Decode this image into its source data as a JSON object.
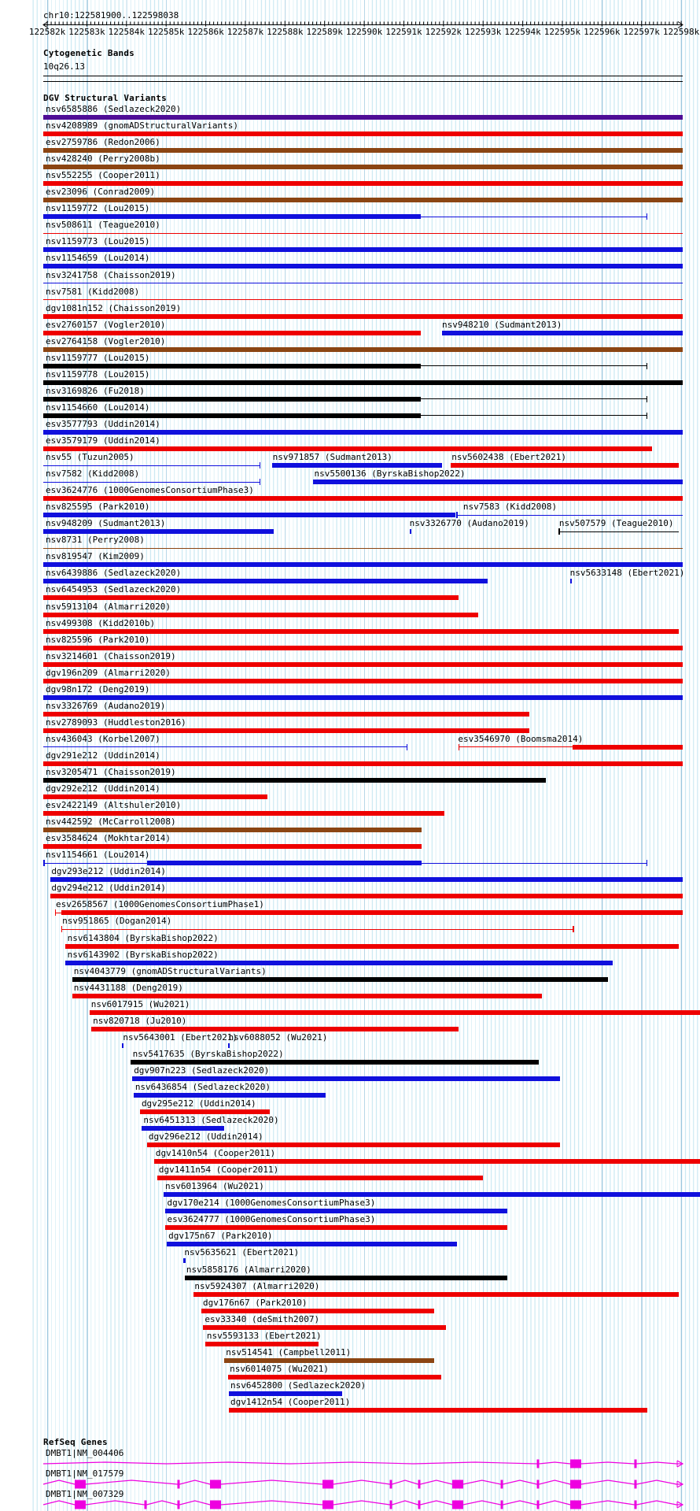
{
  "region": {
    "title": "chr10:122581900..122598038"
  },
  "ruler": {
    "tick_labels": [
      "122582k",
      "122583k",
      "122584k",
      "122585k",
      "122586k",
      "122587k",
      "122588k",
      "122589k",
      "122590k",
      "122591k",
      "122592k",
      "122593k",
      "122594k",
      "122595k",
      "122596k",
      "122597k",
      "122598k"
    ]
  },
  "sections": {
    "cytogenetic": {
      "header": "Cytogenetic Bands",
      "band_label": "10q26.13"
    },
    "dgv": {
      "header": "DGV Structural Variants"
    },
    "refseq": {
      "header": "RefSeq Genes"
    }
  },
  "palette": {
    "red": "#ee0000",
    "blue": "#1010dd",
    "black": "#000000",
    "brown": "#8b4513",
    "purple": "#4e0d96",
    "magenta": "#ee00e0",
    "grid_minor": "#cdeaf3",
    "grid_major": "#9cc6de",
    "text": "#000000"
  },
  "variants": [
    [
      [
        "nsv6585886 (Sedlazeck2020)",
        null,
        [
          [
            "b",
            0,
            100,
            "p"
          ]
        ]
      ]
    ],
    [
      [
        "nsv4208989 (gnomADStructuralVariants)",
        null,
        [
          [
            "b",
            0,
            100,
            "r"
          ]
        ]
      ]
    ],
    [
      [
        "esv2759786 (Redon2006)",
        null,
        [
          [
            "b",
            0,
            100,
            "n"
          ]
        ]
      ]
    ],
    [
      [
        "nsv428240 (Perry2008b)",
        null,
        [
          [
            "b",
            0,
            100,
            "n"
          ]
        ]
      ]
    ],
    [
      [
        "nsv552255 (Cooper2011)",
        null,
        [
          [
            "b",
            0,
            100,
            "r"
          ]
        ]
      ]
    ],
    [
      [
        "esv23096 (Conrad2009)",
        null,
        [
          [
            "b",
            0,
            100,
            "n"
          ]
        ]
      ]
    ],
    [
      [
        "nsv1159772 (Lou2015)",
        null,
        [
          [
            "b",
            0,
            59,
            "b"
          ],
          [
            "l",
            59,
            94.5,
            "b",
            "r"
          ]
        ]
      ]
    ],
    [
      [
        "nsv508611 (Teague2010)",
        null,
        [
          [
            "l",
            0,
            100,
            "r",
            ""
          ]
        ]
      ]
    ],
    [
      [
        "nsv1159773 (Lou2015)",
        null,
        [
          [
            "b",
            0,
            100,
            "b"
          ]
        ]
      ]
    ],
    [
      [
        "nsv1154659 (Lou2014)",
        null,
        [
          [
            "b",
            0,
            100,
            "b"
          ]
        ]
      ]
    ],
    [
      [
        "nsv3241758 (Chaisson2019)",
        null,
        [
          [
            "l",
            0,
            100,
            "b",
            ""
          ]
        ]
      ]
    ],
    [
      [
        "nsv7581 (Kidd2008)",
        null,
        [
          [
            "l",
            0,
            100,
            "r",
            ""
          ]
        ]
      ]
    ],
    [
      [
        "dgv1081n152 (Chaisson2019)",
        null,
        [
          [
            "b",
            0,
            100,
            "r"
          ]
        ]
      ]
    ],
    [
      [
        "esv2760157 (Vogler2010)",
        null,
        [
          [
            "b",
            0,
            59,
            "r"
          ]
        ]
      ],
      [
        "nsv948210 (Sudmant2013)",
        62,
        [
          [
            "b",
            62.4,
            100,
            "b"
          ]
        ]
      ]
    ],
    [
      [
        "esv2764158 (Vogler2010)",
        null,
        [
          [
            "b",
            0,
            100,
            "n"
          ]
        ]
      ]
    ],
    [
      [
        "nsv1159777 (Lou2015)",
        null,
        [
          [
            "b",
            0,
            59,
            "k"
          ],
          [
            "l",
            59,
            94.5,
            "k",
            "r"
          ]
        ]
      ]
    ],
    [
      [
        "nsv1159778 (Lou2015)",
        null,
        [
          [
            "b",
            0,
            100,
            "k"
          ]
        ]
      ]
    ],
    [
      [
        "nsv3169826 (Fu2018)",
        null,
        [
          [
            "b",
            0,
            59,
            "k"
          ],
          [
            "l",
            59,
            94.5,
            "k",
            "r"
          ]
        ]
      ]
    ],
    [
      [
        "nsv1154660 (Lou2014)",
        null,
        [
          [
            "b",
            0,
            59,
            "k"
          ],
          [
            "l",
            59,
            94.5,
            "k",
            "r"
          ]
        ]
      ]
    ],
    [
      [
        "esv3577793 (Uddin2014)",
        null,
        [
          [
            "b",
            0,
            100,
            "b"
          ]
        ]
      ]
    ],
    [
      [
        "esv3579179 (Uddin2014)",
        null,
        [
          [
            "b",
            0,
            95.2,
            "r"
          ]
        ]
      ]
    ],
    [
      [
        "nsv55 (Tuzun2005)",
        null,
        [
          [
            "l",
            0,
            34,
            "b",
            "r"
          ]
        ]
      ],
      [
        "nsv971857 (Sudmant2013)",
        35.5,
        [
          [
            "b",
            35.8,
            62.4,
            "b"
          ]
        ]
      ],
      [
        "nsv5602438 (Ebert2021)",
        63.5,
        [
          [
            "b",
            63.7,
            99.4,
            "r"
          ]
        ]
      ]
    ],
    [
      [
        "nsv7582 (Kidd2008)",
        null,
        [
          [
            "l",
            0,
            34,
            "b",
            "r"
          ]
        ]
      ],
      [
        "nsv5500136 (ByrskaBishop2022)",
        42,
        [
          [
            "b",
            42.2,
            100,
            "b"
          ]
        ]
      ]
    ],
    [
      [
        "esv3624776 (1000GenomesConsortiumPhase3)",
        null,
        [
          [
            "b",
            0,
            100,
            "r"
          ]
        ]
      ]
    ],
    [
      [
        "nsv825595 (Park2010)",
        null,
        [
          [
            "b",
            0,
            64.4,
            "b"
          ]
        ]
      ],
      [
        "nsv7583 (Kidd2008)",
        65.3,
        [
          [
            "l",
            64.6,
            100,
            "b",
            "l"
          ]
        ]
      ]
    ],
    [
      [
        "nsv948209 (Sudmant2013)",
        null,
        [
          [
            "b",
            0,
            36,
            "b"
          ]
        ]
      ],
      [
        "nsv3326770 (Audano2019)",
        56.9,
        [
          [
            "t",
            57.3,
            "b"
          ]
        ]
      ],
      [
        "nsv507579 (Teague2010)",
        80.3,
        [
          [
            "l",
            80.6,
            99.4,
            "k",
            "l"
          ]
        ]
      ]
    ],
    [
      [
        "nsv8731 (Perry2008)",
        null,
        [
          [
            "l",
            0,
            100,
            "n",
            ""
          ]
        ]
      ]
    ],
    [
      [
        "nsv819547 (Kim2009)",
        null,
        [
          [
            "b",
            0,
            100,
            "b"
          ]
        ]
      ]
    ],
    [
      [
        "nsv6439886 (Sedlazeck2020)",
        null,
        [
          [
            "b",
            0,
            69.5,
            "b"
          ]
        ]
      ],
      [
        "nsv5633148 (Ebert2021)",
        82,
        [
          [
            "t",
            82.4,
            "b"
          ]
        ]
      ]
    ],
    [
      [
        "nsv6454953 (Sedlazeck2020)",
        null,
        [
          [
            "b",
            0,
            65,
            "r"
          ]
        ]
      ]
    ],
    [
      [
        "nsv5913104 (Almarri2020)",
        null,
        [
          [
            "b",
            0,
            68,
            "r"
          ]
        ]
      ]
    ],
    [
      [
        "nsv499308 (Kidd2010b)",
        null,
        [
          [
            "b",
            0,
            99.4,
            "r"
          ]
        ]
      ]
    ],
    [
      [
        "nsv825596 (Park2010)",
        null,
        [
          [
            "b",
            0,
            100,
            "r"
          ]
        ]
      ]
    ],
    [
      [
        "nsv3214601 (Chaisson2019)",
        null,
        [
          [
            "b",
            0,
            100,
            "r"
          ]
        ]
      ]
    ],
    [
      [
        "dgv196n209 (Almarri2020)",
        null,
        [
          [
            "b",
            0,
            100,
            "r"
          ]
        ]
      ]
    ],
    [
      [
        "dgv98n172 (Deng2019)",
        null,
        [
          [
            "b",
            0,
            100,
            "b"
          ]
        ]
      ]
    ],
    [
      [
        "nsv3326769 (Audano2019)",
        null,
        [
          [
            "b",
            0,
            76,
            "r"
          ]
        ]
      ]
    ],
    [
      [
        "nsv2789093 (Huddleston2016)",
        null,
        [
          [
            "b",
            0,
            76,
            "r"
          ]
        ]
      ]
    ],
    [
      [
        "nsv436043 (Korbel2007)",
        null,
        [
          [
            "l",
            0,
            57,
            "b",
            "r"
          ]
        ]
      ],
      [
        "esv3546970 (Boomsma2014)",
        64.5,
        [
          [
            "l",
            64.9,
            82.8,
            "r",
            "l"
          ],
          [
            "b",
            82.8,
            100,
            "r"
          ]
        ]
      ]
    ],
    [
      [
        "dgv291e212 (Uddin2014)",
        null,
        [
          [
            "b",
            0,
            100,
            "r"
          ]
        ]
      ]
    ],
    [
      [
        "nsv3205471 (Chaisson2019)",
        null,
        [
          [
            "b",
            0,
            78.6,
            "k"
          ]
        ]
      ]
    ],
    [
      [
        "dgv292e212 (Uddin2014)",
        null,
        [
          [
            "b",
            0,
            35.1,
            "r"
          ]
        ]
      ]
    ],
    [
      [
        "esv2422149 (Altshuler2010)",
        null,
        [
          [
            "b",
            0,
            62.7,
            "r"
          ]
        ]
      ]
    ],
    [
      [
        "nsv442592 (McCarroll2008)",
        null,
        [
          [
            "b",
            0,
            59.2,
            "n"
          ]
        ]
      ]
    ],
    [
      [
        "esv3584624 (Mokhtar2014)",
        null,
        [
          [
            "b",
            0,
            59.2,
            "r"
          ]
        ]
      ]
    ],
    [
      [
        "nsv1154661 (Lou2014)",
        null,
        [
          [
            "l",
            0,
            16.2,
            "b",
            "l"
          ],
          [
            "b",
            16.2,
            59.2,
            "b"
          ],
          [
            "l",
            59.2,
            94.5,
            "b",
            "r"
          ]
        ]
      ]
    ],
    [
      [
        "dgv293e212 (Uddin2014)",
        0.9,
        [
          [
            "b",
            1.1,
            100,
            "b"
          ]
        ]
      ]
    ],
    [
      [
        "dgv294e212 (Uddin2014)",
        0.9,
        [
          [
            "b",
            1.1,
            100,
            "r"
          ]
        ]
      ]
    ],
    [
      [
        "esv2658567 (1000GenomesConsortiumPhase1)",
        1.6,
        [
          [
            "l",
            1.8,
            2.8,
            "r",
            "l"
          ],
          [
            "b",
            2.8,
            100,
            "r"
          ]
        ]
      ]
    ],
    [
      [
        "nsv951865 (Dogan2014)",
        2.6,
        [
          [
            "l",
            2.8,
            83,
            "r",
            "lr"
          ]
        ]
      ]
    ],
    [
      [
        "nsv6143804 (ByrskaBishop2022)",
        3.4,
        [
          [
            "b",
            3.5,
            99.4,
            "r"
          ]
        ]
      ]
    ],
    [
      [
        "nsv6143902 (ByrskaBishop2022)",
        3.4,
        [
          [
            "b",
            3.5,
            89,
            "b"
          ]
        ]
      ]
    ],
    [
      [
        "nsv4043779 (gnomADStructuralVariants)",
        4.4,
        [
          [
            "b",
            4.5,
            88.3,
            "k"
          ]
        ]
      ]
    ],
    [
      [
        "nsv4431188 (Deng2019)",
        4.4,
        [
          [
            "b",
            4.5,
            78,
            "r"
          ]
        ]
      ]
    ],
    [
      [
        "nsv6017915 (Wu2021)",
        7.1,
        [
          [
            "b",
            7.2,
            102.8,
            "r"
          ]
        ]
      ]
    ],
    [
      [
        "nsv820718 (Ju2010)",
        7.4,
        [
          [
            "b",
            7.5,
            65,
            "r"
          ]
        ]
      ]
    ],
    [
      [
        "nsv5643001 (Ebert2021)",
        12.1,
        [
          [
            "t",
            12.3,
            "b"
          ]
        ]
      ],
      [
        "nsv6088052 (Wu2021)",
        28.6,
        [
          [
            "t",
            28.9,
            "b"
          ]
        ]
      ]
    ],
    [
      [
        "nsv5417635 (ByrskaBishop2022)",
        13.6,
        [
          [
            "b",
            13.7,
            77.5,
            "k"
          ]
        ]
      ]
    ],
    [
      [
        "dgv907n223 (Sedlazeck2020)",
        13.8,
        [
          [
            "b",
            13.9,
            80.8,
            "b"
          ]
        ]
      ]
    ],
    [
      [
        "nsv6436854 (Sedlazeck2020)",
        14,
        [
          [
            "b",
            14.1,
            44.2,
            "b"
          ]
        ]
      ]
    ],
    [
      [
        "dgv295e212 (Uddin2014)",
        15,
        [
          [
            "b",
            15.1,
            35.4,
            "r"
          ]
        ]
      ]
    ],
    [
      [
        "nsv6451313 (Sedlazeck2020)",
        15.3,
        [
          [
            "b",
            15.4,
            28.3,
            "b"
          ]
        ]
      ]
    ],
    [
      [
        "dgv296e212 (Uddin2014)",
        16.1,
        [
          [
            "b",
            16.2,
            80.8,
            "r"
          ]
        ]
      ]
    ],
    [
      [
        "dgv1410n54 (Cooper2011)",
        17.2,
        [
          [
            "b",
            17.3,
            102.8,
            "r"
          ]
        ]
      ]
    ],
    [
      [
        "dgv1411n54 (Cooper2011)",
        17.7,
        [
          [
            "b",
            17.8,
            68.8,
            "r"
          ]
        ]
      ]
    ],
    [
      [
        "nsv6013964 (Wu2021)",
        18.7,
        [
          [
            "b",
            18.8,
            102.8,
            "b"
          ]
        ]
      ]
    ],
    [
      [
        "dgv170e214 (1000GenomesConsortiumPhase3)",
        19,
        [
          [
            "b",
            19.1,
            72.6,
            "b"
          ]
        ]
      ]
    ],
    [
      [
        "esv3624777 (1000GenomesConsortiumPhase3)",
        19,
        [
          [
            "b",
            19.1,
            72.6,
            "r"
          ]
        ]
      ]
    ],
    [
      [
        "dgv175n67 (Park2010)",
        19.2,
        [
          [
            "b",
            19.3,
            64.7,
            "b"
          ]
        ]
      ]
    ],
    [
      [
        "nsv5635621 (Ebert2021)",
        21.7,
        [
          [
            "t",
            21.9,
            "b"
          ]
        ]
      ]
    ],
    [
      [
        "nsv5858176 (Almarri2020)",
        22,
        [
          [
            "b",
            22.1,
            72.6,
            "k"
          ]
        ]
      ]
    ],
    [
      [
        "nsv5924307 (Almarri2020)",
        23.3,
        [
          [
            "b",
            23.5,
            99.4,
            "r"
          ]
        ]
      ]
    ],
    [
      [
        "dgv176n67 (Park2010)",
        24.6,
        [
          [
            "b",
            24.7,
            61.1,
            "r"
          ]
        ]
      ]
    ],
    [
      [
        "esv33340 (deSmith2007)",
        24.9,
        [
          [
            "b",
            25,
            63,
            "r"
          ]
        ]
      ]
    ],
    [
      [
        "nsv5593133 (Ebert2021)",
        25.2,
        [
          [
            "b",
            25.3,
            43,
            "r"
          ]
        ]
      ]
    ],
    [
      [
        "nsv514541 (Campbell2011)",
        28.2,
        [
          [
            "b",
            28.3,
            61.1,
            "n"
          ]
        ]
      ]
    ],
    [
      [
        "nsv6014075 (Wu2021)",
        28.8,
        [
          [
            "b",
            28.9,
            62.2,
            "r"
          ]
        ]
      ]
    ],
    [
      [
        "nsv6452800 (Sedlazeck2020)",
        28.9,
        [
          [
            "b",
            29,
            46.7,
            "b"
          ]
        ]
      ]
    ],
    [
      [
        "dgv1412n54 (Cooper2011)",
        28.9,
        [
          [
            "b",
            29,
            94.5,
            "r"
          ]
        ]
      ]
    ]
  ],
  "genes": [
    {
      "label": "DMBT1|NM_004406",
      "exons": [
        [
          670,
          14
        ]
      ],
      "ticks": [
        629,
        753
      ],
      "amp": 2
    },
    {
      "label": "DMBT1|NM_017579",
      "exons": [
        [
          40,
          14
        ],
        [
          212,
          14
        ],
        [
          355,
          14
        ],
        [
          520,
          14
        ],
        [
          670,
          14
        ]
      ],
      "ticks": [
        172,
        442,
        478,
        583,
        629,
        753
      ],
      "amp": 5
    },
    {
      "label": "DMBT1|NM_007329",
      "exons": [
        [
          40,
          14
        ],
        [
          212,
          14
        ],
        [
          355,
          14
        ],
        [
          520,
          14
        ],
        [
          670,
          14
        ]
      ],
      "ticks": [
        130,
        172,
        442,
        478,
        583,
        629,
        753
      ],
      "amp": 5
    }
  ]
}
